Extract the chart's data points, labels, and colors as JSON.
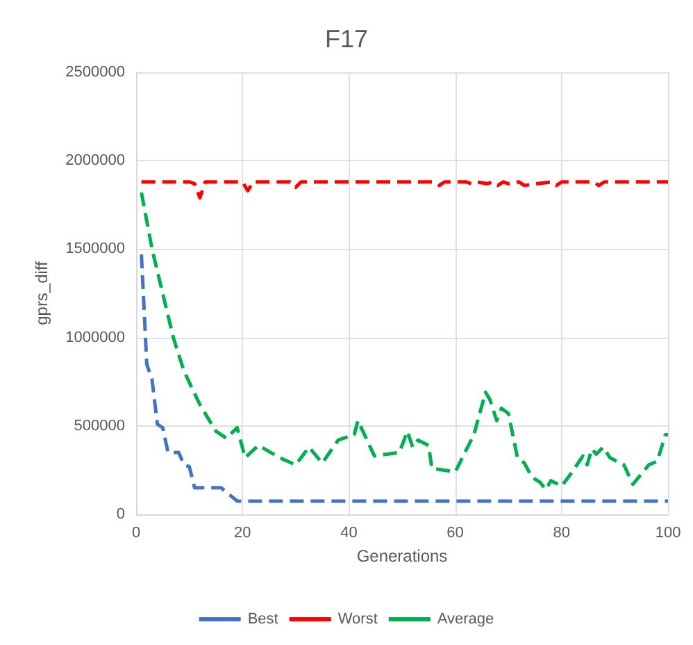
{
  "chart_data": {
    "type": "line",
    "title": "F17",
    "xlabel": "Generations",
    "ylabel": "gprs_diff",
    "xlim": [
      0,
      100
    ],
    "xticks": [
      0,
      20,
      40,
      60,
      80,
      100
    ],
    "ylim": [
      0,
      2500000
    ],
    "yticks": [
      0,
      500000,
      1000000,
      1500000,
      2000000,
      2500000
    ],
    "grid": true,
    "legend": "bottom",
    "marker": "none",
    "line_style": "dashed",
    "series": [
      {
        "name": "Best",
        "color": "#4472c4",
        "x": [
          1,
          2,
          3,
          4,
          5,
          6,
          8,
          9,
          10,
          11,
          16,
          19,
          100
        ],
        "values": [
          1470000,
          850000,
          760000,
          510000,
          490000,
          350000,
          350000,
          280000,
          270000,
          150000,
          150000,
          75000,
          75000
        ]
      },
      {
        "name": "Worst",
        "color": "#ff0000",
        "x": [
          1,
          10,
          11,
          12,
          13,
          20,
          21,
          22,
          29,
          30,
          31,
          56,
          57,
          58,
          62,
          63,
          64,
          66,
          67,
          68,
          69,
          70,
          72,
          73,
          78,
          79,
          80,
          86,
          87,
          88,
          100
        ],
        "values": [
          1880000,
          1880000,
          1870000,
          1790000,
          1880000,
          1880000,
          1830000,
          1880000,
          1880000,
          1850000,
          1880000,
          1880000,
          1860000,
          1880000,
          1880000,
          1870000,
          1880000,
          1870000,
          1880000,
          1860000,
          1880000,
          1870000,
          1880000,
          1860000,
          1880000,
          1860000,
          1880000,
          1880000,
          1860000,
          1880000,
          1880000
        ]
      },
      {
        "name": "Average",
        "color": "#00b050",
        "x": [
          1,
          3,
          5,
          7,
          9,
          12,
          15,
          17,
          19,
          20.5,
          23,
          27,
          30,
          32.5,
          35,
          38,
          41,
          41.7,
          44.8,
          49.5,
          51,
          52,
          53,
          55,
          55.6,
          60,
          63.5,
          65.7,
          66.5,
          67.8,
          68.7,
          70,
          71.7,
          73,
          74.4,
          76,
          77,
          78,
          80,
          82,
          84,
          84.8,
          85.7,
          86.5,
          87.8,
          89.1,
          91.7,
          93.4,
          96.4,
          98,
          99.5,
          100
        ],
        "values": [
          1820000,
          1500000,
          1250000,
          1000000,
          810000,
          620000,
          470000,
          430000,
          490000,
          320000,
          390000,
          320000,
          280000,
          380000,
          290000,
          420000,
          450000,
          530000,
          330000,
          350000,
          470000,
          380000,
          420000,
          390000,
          260000,
          240000,
          450000,
          690000,
          650000,
          530000,
          600000,
          570000,
          320000,
          290000,
          210000,
          180000,
          140000,
          190000,
          160000,
          240000,
          330000,
          280000,
          370000,
          340000,
          380000,
          320000,
          280000,
          170000,
          280000,
          300000,
          450000,
          450000
        ]
      }
    ]
  }
}
